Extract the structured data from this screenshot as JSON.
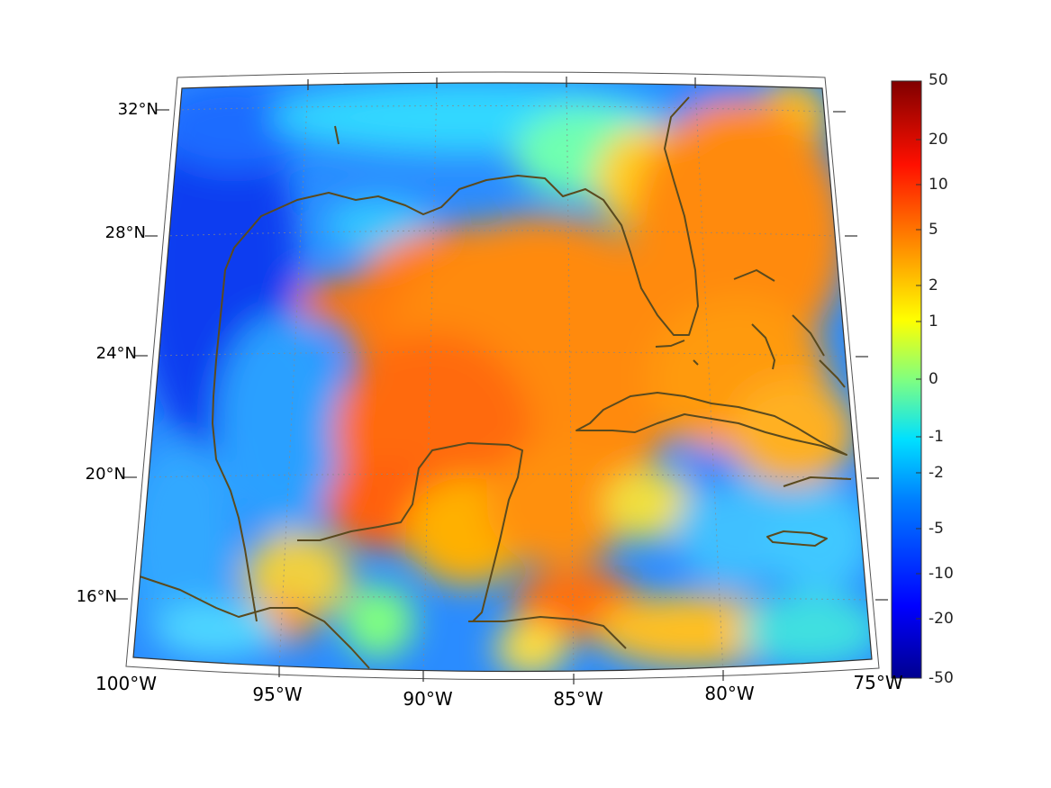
{
  "map": {
    "lon_labels": [
      "100°W",
      "95°W",
      "90°W",
      "85°W",
      "80°W",
      "75°W"
    ],
    "lat_labels": [
      "32°N",
      "28°N",
      "24°N",
      "20°N",
      "16°N"
    ],
    "lon_range": [
      -100,
      -75
    ],
    "lat_range": [
      14,
      33
    ]
  },
  "colorbar": {
    "labels": [
      "50",
      "20",
      "10",
      "5",
      "2",
      "1",
      "0",
      "-1",
      "-2",
      "-5",
      "-10",
      "-20",
      "-50"
    ],
    "colormap": "jet",
    "colors": [
      "#00008f",
      "#0000ff",
      "#0080ff",
      "#00ffff",
      "#80ff80",
      "#ffff00",
      "#ff8000",
      "#ff0000",
      "#800000"
    ]
  },
  "colors": {
    "coastline": "#5a4a1e",
    "grid": "#888888"
  }
}
